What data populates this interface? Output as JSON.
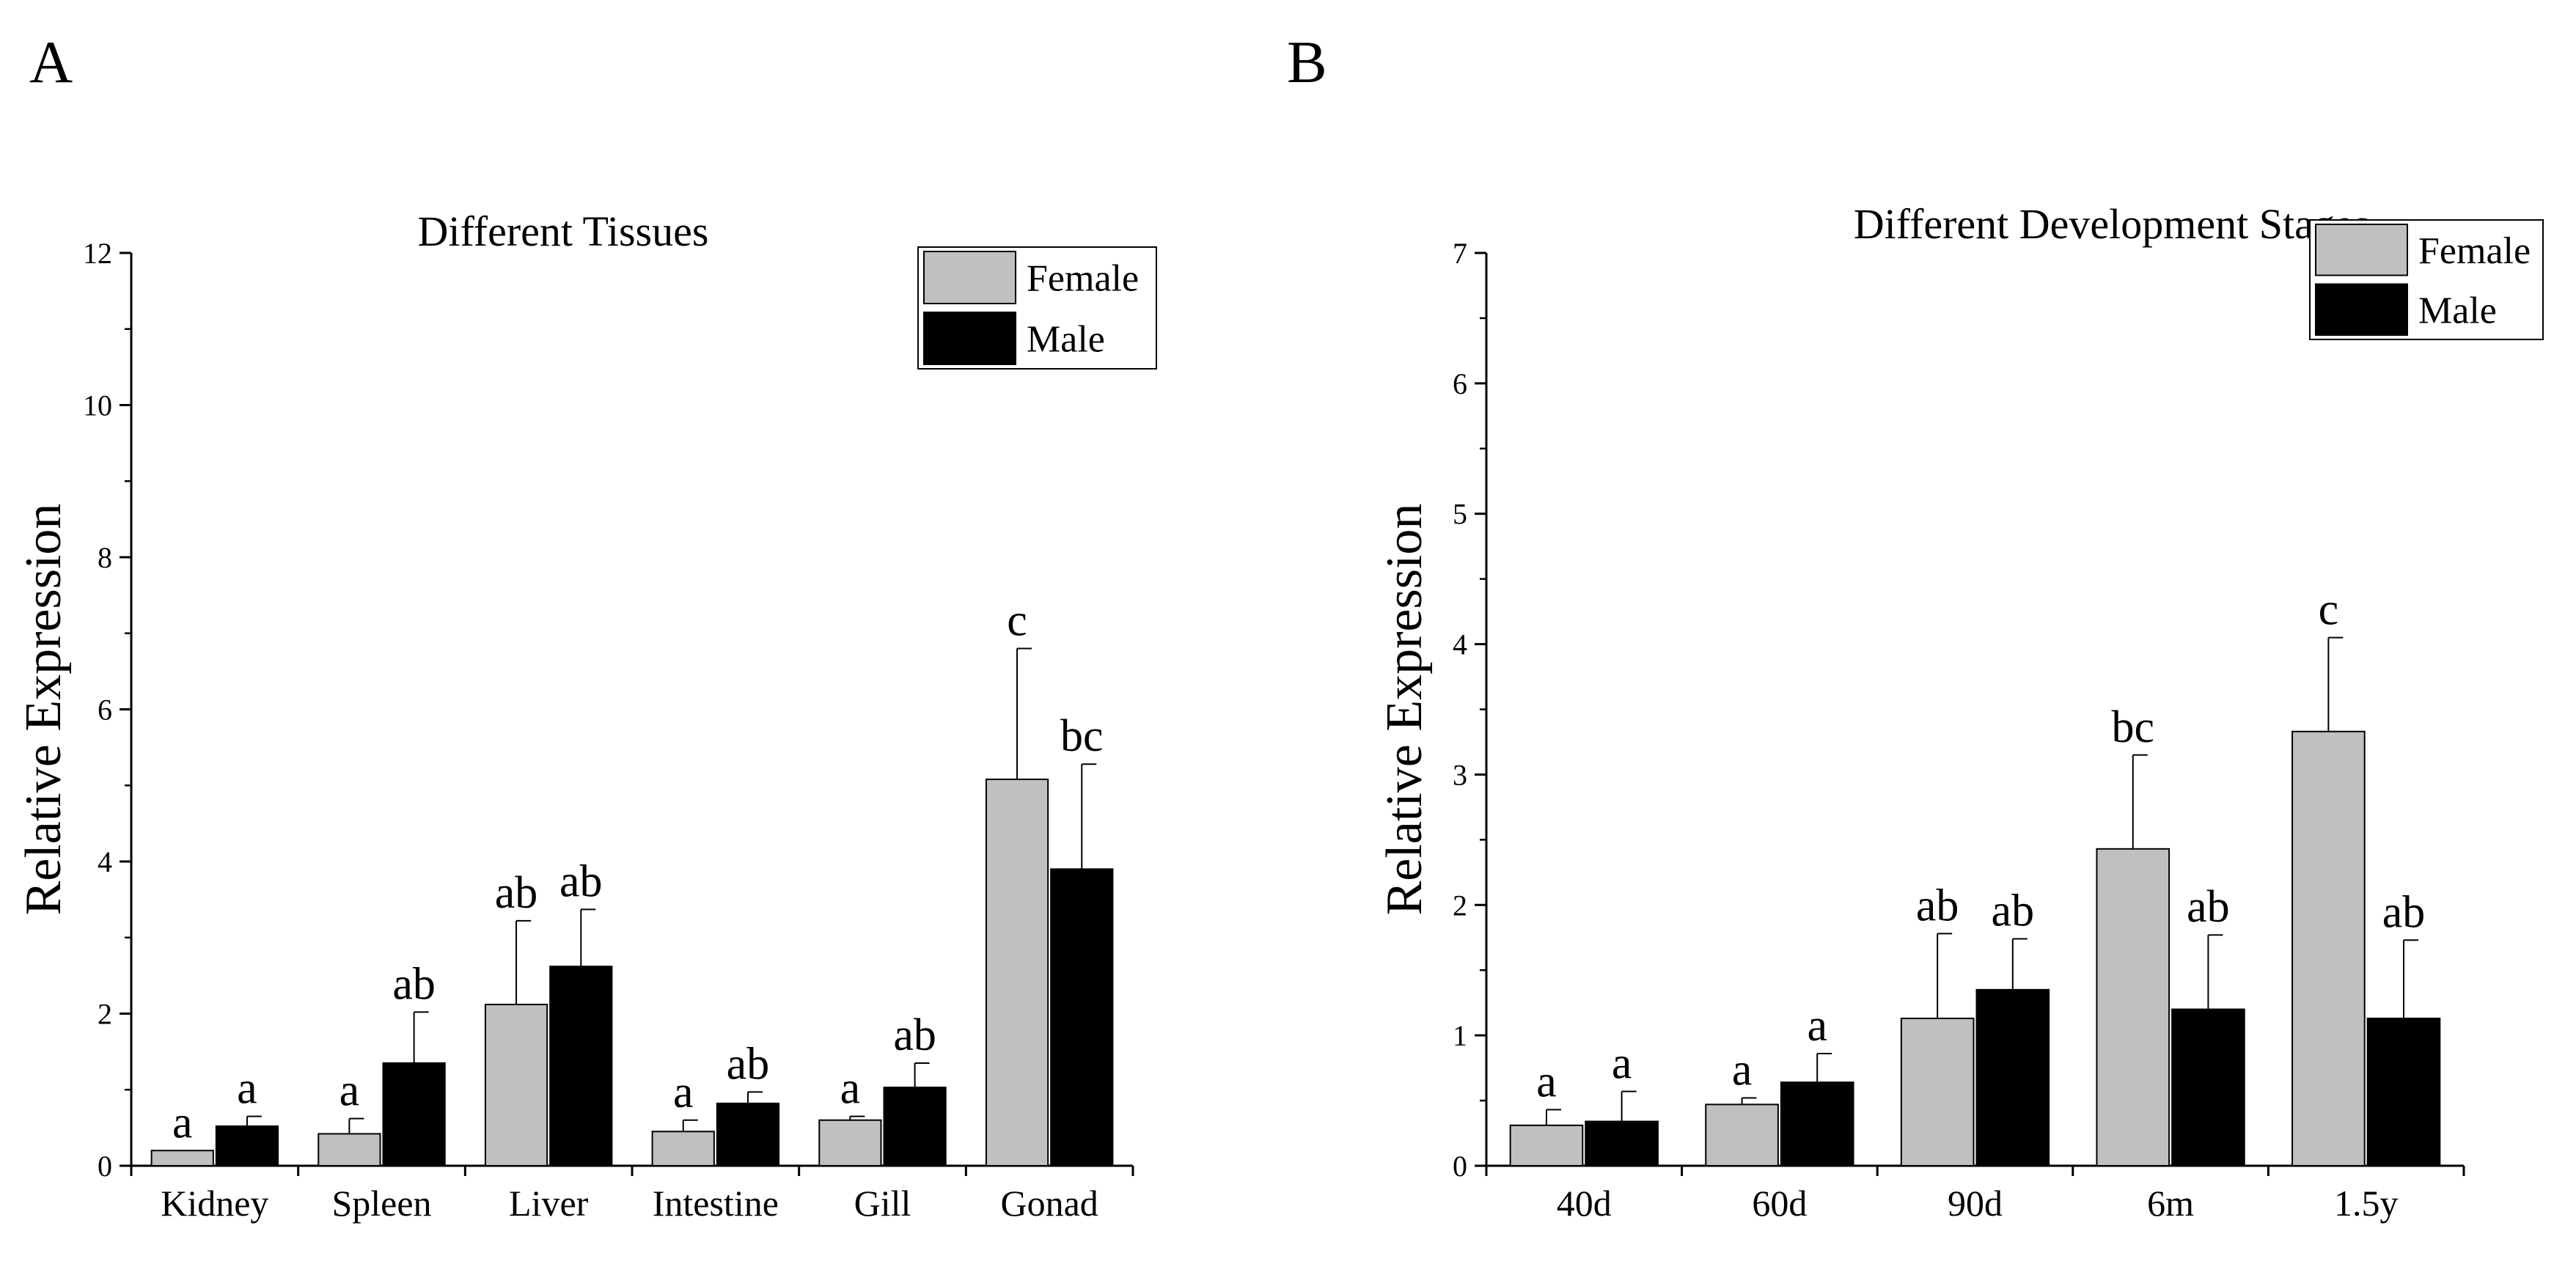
{
  "panels": [
    {
      "letter": "A"
    },
    {
      "letter": "B"
    }
  ],
  "chart_data": [
    {
      "type": "bar",
      "title": "Different Tissues",
      "ylabel": "Relative Expression",
      "xlabel": "",
      "ylim": [
        0,
        12
      ],
      "yticks": [
        "0",
        "2",
        "4",
        "6",
        "8",
        "10",
        "12"
      ],
      "categories": [
        "Kidney",
        "Spleen",
        "Liver",
        "Intestine",
        "Gill",
        "Gonad"
      ],
      "series": [
        {
          "name": "Female",
          "color": "#c0c0c0",
          "values": [
            0.2,
            0.42,
            2.12,
            0.45,
            0.6,
            5.08
          ],
          "errors": [
            0.0,
            0.2,
            1.1,
            0.15,
            0.05,
            1.72
          ],
          "labels": [
            "a",
            "a",
            "ab",
            "a",
            "a",
            "c"
          ]
        },
        {
          "name": "Male",
          "color": "#000000",
          "values": [
            0.52,
            1.35,
            2.62,
            0.82,
            1.03,
            3.9
          ],
          "errors": [
            0.13,
            0.67,
            0.75,
            0.15,
            0.32,
            1.38
          ],
          "labels": [
            "a",
            "ab",
            "ab",
            "ab",
            "ab",
            "bc"
          ]
        }
      ],
      "legend": "top-right"
    },
    {
      "type": "bar",
      "title": "Different Development Stages",
      "ylabel": "Relative Expression",
      "xlabel": "",
      "ylim": [
        0,
        7
      ],
      "yticks": [
        "0",
        "1",
        "2",
        "3",
        "4",
        "5",
        "6",
        "7"
      ],
      "categories": [
        "40d",
        "60d",
        "90d",
        "6m",
        "1.5y"
      ],
      "series": [
        {
          "name": "Female",
          "color": "#c0c0c0",
          "values": [
            0.31,
            0.47,
            1.13,
            2.43,
            3.33
          ],
          "errors": [
            0.12,
            0.05,
            0.65,
            0.72,
            0.72
          ],
          "labels": [
            "a",
            "a",
            "ab",
            "bc",
            "c"
          ]
        },
        {
          "name": "Male",
          "color": "#000000",
          "values": [
            0.34,
            0.64,
            1.35,
            1.2,
            1.13
          ],
          "errors": [
            0.23,
            0.22,
            0.39,
            0.57,
            0.6
          ],
          "labels": [
            "a",
            "a",
            "ab",
            "ab",
            "ab"
          ]
        }
      ],
      "legend": "top-right"
    }
  ]
}
